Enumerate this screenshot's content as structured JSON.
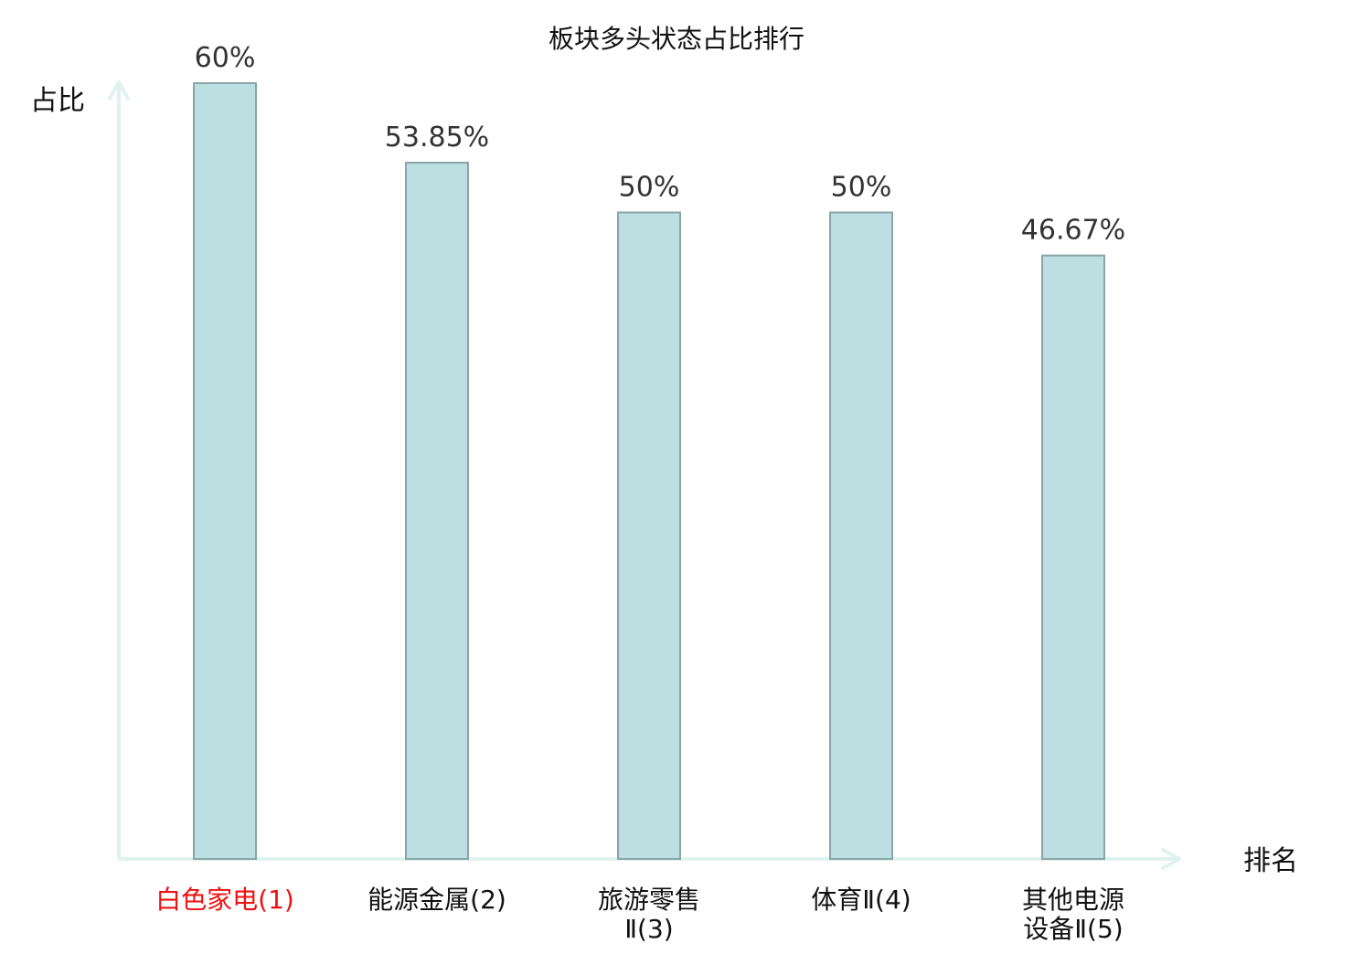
{
  "chart_data": {
    "type": "bar",
    "title": "板块多头状态占比排行",
    "ylabel": "占比",
    "xlabel": "排名",
    "categories": [
      [
        "白色家电(1)"
      ],
      [
        "能源金属(2)"
      ],
      [
        "旅游零售",
        "Ⅱ(3)"
      ],
      [
        "体育Ⅱ(4)"
      ],
      [
        "其他电源",
        "设备Ⅱ(5)"
      ]
    ],
    "values": [
      60,
      53.85,
      50,
      50,
      46.67
    ],
    "value_labels": [
      "60%",
      "53.85%",
      "50%",
      "50%",
      "46.67%"
    ],
    "ylim": [
      0,
      60
    ],
    "grid": false,
    "highlight_index": 0
  },
  "colors": {
    "bar_fill": "#bce0e1",
    "bar_stroke": "#8aa5a7",
    "axis": "#e0f2ef",
    "text": "#333333",
    "title": "#111111",
    "highlight": "#ee1111"
  }
}
